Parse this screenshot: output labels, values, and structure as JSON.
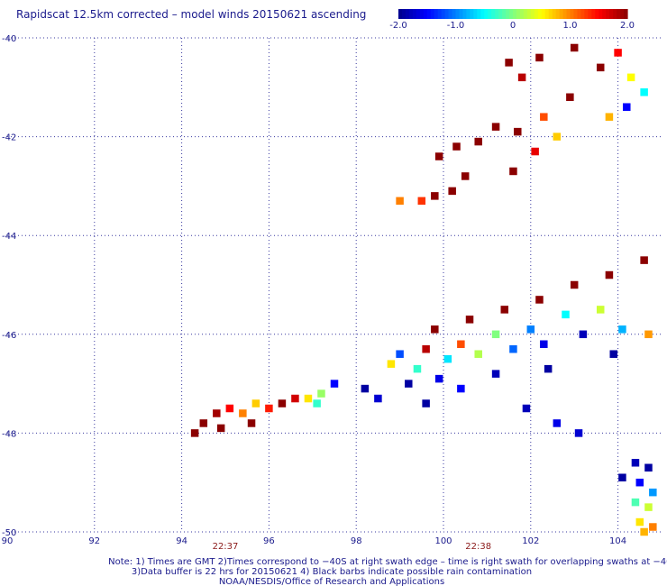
{
  "chart_data": {
    "type": "heatmap",
    "title": "Rapidscat 12.5km corrected – model winds 20150621 ascending",
    "colorbar": {
      "min": -2.0,
      "max": 2.0,
      "tick_labels": [
        "-2.0",
        "-1.0",
        "0",
        "1.0",
        "2.0"
      ],
      "tick_values": [
        -2.0,
        -1.0,
        0.0,
        1.0,
        2.0
      ],
      "colors": [
        "#00008b",
        "#0000ff",
        "#0080ff",
        "#00ffff",
        "#80ff80",
        "#ffff00",
        "#ff8000",
        "#ff0000",
        "#8b0000"
      ]
    },
    "xlim": [
      90,
      105
    ],
    "ylim": [
      -50,
      -40
    ],
    "x_ticks": [
      90,
      92,
      94,
      96,
      98,
      100,
      102,
      104
    ],
    "x_tick_labels": [
      "90",
      "92",
      "94",
      "96",
      "98",
      "100",
      "102",
      "104"
    ],
    "y_ticks": [
      -40,
      -42,
      -44,
      -46,
      -48,
      -50
    ],
    "y_tick_labels": [
      "-40",
      "-42",
      "-44",
      "-46",
      "-48",
      "-50"
    ],
    "grid": true,
    "time_labels": [
      {
        "x": 95.0,
        "text": "22:37"
      },
      {
        "x": 100.8,
        "text": "22:38"
      }
    ],
    "regions": [
      {
        "name": "northeast-swath",
        "cells": [
          [
            101.5,
            -40.5,
            2.0
          ],
          [
            101.8,
            -40.8,
            1.8
          ],
          [
            102.2,
            -40.4,
            2.0
          ],
          [
            103.0,
            -40.2,
            2.0
          ],
          [
            103.6,
            -40.6,
            2.0
          ],
          [
            104.0,
            -40.3,
            1.5
          ],
          [
            104.3,
            -40.8,
            0.5
          ],
          [
            104.6,
            -41.1,
            -0.5
          ],
          [
            104.2,
            -41.4,
            -1.5
          ],
          [
            103.8,
            -41.6,
            0.8
          ],
          [
            102.9,
            -41.2,
            2.0
          ],
          [
            102.3,
            -41.6,
            1.2
          ],
          [
            101.7,
            -41.9,
            2.0
          ],
          [
            101.2,
            -41.8,
            2.0
          ],
          [
            100.8,
            -42.1,
            2.0
          ],
          [
            100.3,
            -42.2,
            2.0
          ],
          [
            99.9,
            -42.4,
            2.0
          ],
          [
            102.6,
            -42.0,
            0.7
          ],
          [
            102.1,
            -42.3,
            1.6
          ],
          [
            100.5,
            -42.8,
            2.0
          ],
          [
            100.2,
            -43.1,
            2.0
          ],
          [
            99.8,
            -43.2,
            2.0
          ],
          [
            99.5,
            -43.3,
            1.3
          ],
          [
            99.0,
            -43.3,
            1.0
          ],
          [
            101.6,
            -42.7,
            2.0
          ]
        ]
      },
      {
        "name": "central-swath",
        "cells": [
          [
            104.6,
            -44.5,
            2.0
          ],
          [
            103.8,
            -44.8,
            2.0
          ],
          [
            103.0,
            -45.0,
            2.0
          ],
          [
            102.2,
            -45.3,
            2.0
          ],
          [
            101.4,
            -45.5,
            2.0
          ],
          [
            100.6,
            -45.7,
            2.0
          ],
          [
            99.8,
            -45.9,
            2.0
          ],
          [
            103.6,
            -45.5,
            0.3
          ],
          [
            102.8,
            -45.6,
            -0.5
          ],
          [
            102.0,
            -45.9,
            -1.0
          ],
          [
            101.2,
            -46.0,
            0.0
          ],
          [
            100.4,
            -46.2,
            1.2
          ],
          [
            99.6,
            -46.3,
            1.8
          ],
          [
            99.0,
            -46.4,
            -1.2
          ],
          [
            98.8,
            -46.6,
            0.6
          ],
          [
            99.4,
            -46.7,
            -0.3
          ],
          [
            100.1,
            -46.5,
            -0.6
          ],
          [
            100.8,
            -46.4,
            0.2
          ],
          [
            101.6,
            -46.3,
            -1.1
          ],
          [
            102.3,
            -46.2,
            -1.6
          ],
          [
            103.2,
            -46.0,
            -1.8
          ],
          [
            104.1,
            -45.9,
            -0.8
          ],
          [
            104.7,
            -46.0,
            0.9
          ],
          [
            103.9,
            -46.4,
            -1.9
          ],
          [
            99.9,
            -46.9,
            -1.6
          ],
          [
            99.2,
            -47.0,
            -1.9
          ],
          [
            98.2,
            -47.1,
            -1.9
          ],
          [
            98.5,
            -47.3,
            -1.7
          ],
          [
            101.2,
            -46.8,
            -1.8
          ],
          [
            102.4,
            -46.7,
            -1.9
          ],
          [
            99.6,
            -47.4,
            -1.9
          ],
          [
            100.4,
            -47.1,
            -1.5
          ],
          [
            101.9,
            -47.5,
            -1.8
          ],
          [
            102.6,
            -47.8,
            -1.6
          ],
          [
            103.1,
            -48.0,
            -1.7
          ]
        ]
      },
      {
        "name": "southwest-swath",
        "cells": [
          [
            94.3,
            -48.0,
            2.0
          ],
          [
            94.5,
            -47.8,
            2.0
          ],
          [
            94.8,
            -47.6,
            1.9
          ],
          [
            95.1,
            -47.5,
            1.5
          ],
          [
            95.4,
            -47.6,
            1.0
          ],
          [
            95.7,
            -47.4,
            0.7
          ],
          [
            96.0,
            -47.5,
            1.4
          ],
          [
            96.3,
            -47.4,
            2.0
          ],
          [
            96.6,
            -47.3,
            1.7
          ],
          [
            96.9,
            -47.3,
            0.6
          ],
          [
            97.2,
            -47.2,
            0.1
          ],
          [
            97.5,
            -47.0,
            -1.5
          ],
          [
            97.1,
            -47.4,
            -0.3
          ],
          [
            94.9,
            -47.9,
            2.0
          ],
          [
            95.6,
            -47.8,
            2.0
          ]
        ]
      },
      {
        "name": "southeast-swath",
        "cells": [
          [
            104.4,
            -48.6,
            -1.8
          ],
          [
            104.7,
            -48.7,
            -1.9
          ],
          [
            104.5,
            -49.0,
            -1.5
          ],
          [
            104.8,
            -49.2,
            -0.9
          ],
          [
            104.4,
            -49.4,
            -0.2
          ],
          [
            104.7,
            -49.5,
            0.3
          ],
          [
            104.5,
            -49.8,
            0.6
          ],
          [
            104.8,
            -49.9,
            1.0
          ],
          [
            104.1,
            -48.9,
            -1.9
          ],
          [
            104.6,
            -50.0,
            0.8
          ]
        ]
      }
    ]
  },
  "notes": {
    "line1": "Note: 1) Times are GMT 2)Times correspond to −40S at right swath edge – time is right swath for overlapping swaths at −40S",
    "line2": "3)Data buffer is 22 hrs for 20150621 4) Black barbs indicate possible rain contamination",
    "line3": "NOAA/NESDIS/Office of Research and Applications"
  }
}
